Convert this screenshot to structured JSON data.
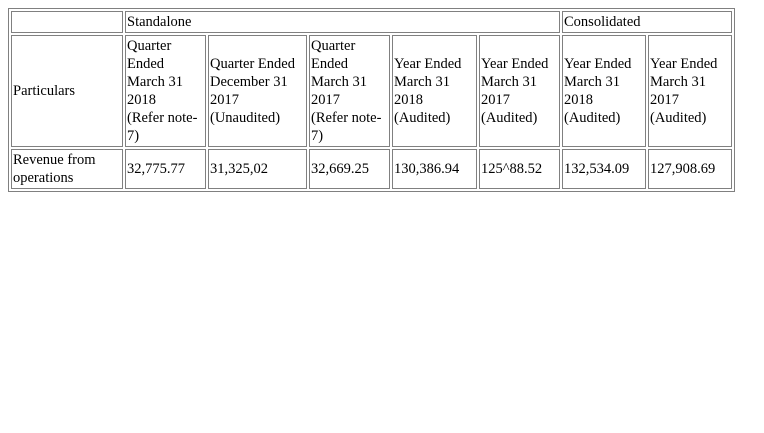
{
  "table": {
    "group_headers": {
      "blank": "",
      "standalone": "Standalone",
      "consolidated": "Consolidated"
    },
    "particulars_label": "Particulars",
    "columns": [
      {
        "lines": [
          "Quarter",
          "Ended",
          "March 31",
          "2018",
          "(Refer note-",
          "7)"
        ]
      },
      {
        "lines": [
          "Quarter Ended",
          "December 31",
          "2017",
          "(Unaudited)"
        ]
      },
      {
        "lines": [
          "Quarter",
          "Ended",
          "March 31",
          "2017",
          "(Refer note-",
          "7)"
        ]
      },
      {
        "lines": [
          "Year Ended",
          "March 31",
          "2018",
          "(Audited)"
        ]
      },
      {
        "lines": [
          "Year Ended",
          "March 31",
          "2017",
          "(Audited)"
        ]
      },
      {
        "lines": [
          "Year Ended",
          "March 31",
          "2018",
          "(Audited)"
        ]
      },
      {
        "lines": [
          "Year Ended",
          "March 31",
          "2017",
          "(Audited)"
        ]
      }
    ],
    "rows": [
      {
        "label": "Revenue from operations",
        "values": [
          "32,775.77",
          "31,325,02",
          "32,669.25",
          "130,386.94",
          "125^88.52",
          "132,534.09",
          "127,908.69"
        ]
      }
    ]
  }
}
